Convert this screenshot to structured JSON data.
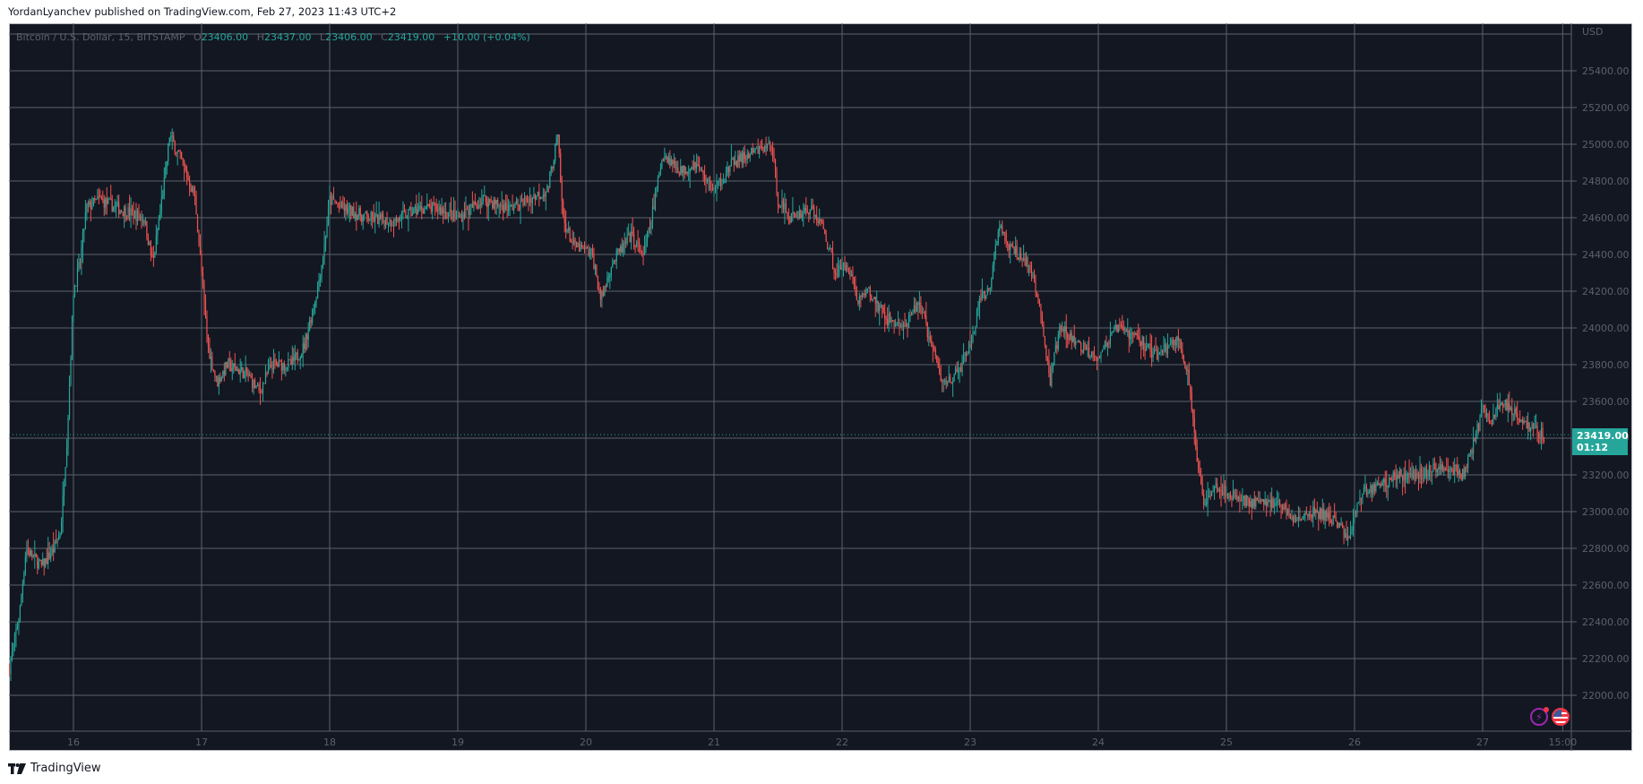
{
  "header": {
    "published_line": "YordanLyanchev published on TradingView.com, Feb 27, 2023 11:43 UTC+2"
  },
  "legend": {
    "symbol": "Bitcoin / U.S. Dollar, 15, BITSTAMP",
    "open_label": "O",
    "open": "23406.00",
    "high_label": "H",
    "high": "23437.00",
    "low_label": "L",
    "low": "23406.00",
    "close_label": "C",
    "close": "23419.00",
    "change": "+10.00 (+0.04%)"
  },
  "price_tag": {
    "price": "23419.00",
    "countdown": "01:12"
  },
  "footer": {
    "brand": "TradingView"
  },
  "icons": [
    "lightning-alert-icon",
    "us-flag-events-icon"
  ],
  "colors": {
    "background": "#131722",
    "grid": "#5d606b",
    "up": "#26a69a",
    "down": "#ef5350",
    "axis_text": "#5d606b",
    "last_price": "#26a69a"
  },
  "chart_data": {
    "type": "candlestick",
    "title": "Bitcoin / U.S. Dollar, 15, BITSTAMP",
    "currency": "USD",
    "timeframe": "15",
    "exchange": "BITSTAMP",
    "y_ticks": [
      22000,
      22200,
      22400,
      22600,
      22800,
      23000,
      23200,
      23400,
      23600,
      23800,
      24000,
      24200,
      24400,
      24600,
      24800,
      25000,
      25200,
      25400
    ],
    "y_tick_labels": [
      "22000.00",
      "22200.00",
      "22400.00",
      "22600.00",
      "22800.00",
      "23000.00",
      "23200.00",
      "23400.00",
      "23600.00",
      "23800.00",
      "24000.00",
      "24200.00",
      "24400.00",
      "24600.00",
      "24800.00",
      "25000.00",
      "25200.00",
      "25400.00"
    ],
    "x_tick_labels": [
      "16",
      "17",
      "18",
      "19",
      "20",
      "21",
      "22",
      "23",
      "24",
      "25",
      "26",
      "27",
      "15:00"
    ],
    "x_tick_days": [
      16,
      17,
      18,
      19,
      20,
      21,
      22,
      23,
      24,
      25,
      26,
      27,
      27.625
    ],
    "ylim": [
      21850,
      25600
    ],
    "xlim": [
      15.48,
      27.72
    ],
    "last_price": 23419.0,
    "grid": true,
    "approx_close_path": [
      [
        15.5,
        22150
      ],
      [
        15.58,
        22450
      ],
      [
        15.63,
        22800
      ],
      [
        15.75,
        22700
      ],
      [
        15.85,
        22800
      ],
      [
        15.9,
        22900
      ],
      [
        15.95,
        23400
      ],
      [
        16.0,
        24200
      ],
      [
        16.05,
        24350
      ],
      [
        16.1,
        24650
      ],
      [
        16.2,
        24700
      ],
      [
        16.35,
        24650
      ],
      [
        16.55,
        24600
      ],
      [
        16.62,
        24350
      ],
      [
        16.72,
        24850
      ],
      [
        16.75,
        25050
      ],
      [
        16.85,
        24900
      ],
      [
        16.95,
        24700
      ],
      [
        17.0,
        24300
      ],
      [
        17.05,
        23900
      ],
      [
        17.12,
        23700
      ],
      [
        17.2,
        23800
      ],
      [
        17.35,
        23750
      ],
      [
        17.45,
        23650
      ],
      [
        17.55,
        23800
      ],
      [
        17.7,
        23800
      ],
      [
        17.8,
        23900
      ],
      [
        17.9,
        24200
      ],
      [
        17.95,
        24400
      ],
      [
        18.0,
        24700
      ],
      [
        18.1,
        24650
      ],
      [
        18.3,
        24600
      ],
      [
        18.5,
        24580
      ],
      [
        18.7,
        24650
      ],
      [
        18.85,
        24650
      ],
      [
        19.0,
        24600
      ],
      [
        19.2,
        24700
      ],
      [
        19.4,
        24650
      ],
      [
        19.55,
        24700
      ],
      [
        19.7,
        24750
      ],
      [
        19.78,
        25050
      ],
      [
        19.82,
        24600
      ],
      [
        19.9,
        24450
      ],
      [
        20.05,
        24400
      ],
      [
        20.12,
        24150
      ],
      [
        20.2,
        24350
      ],
      [
        20.35,
        24500
      ],
      [
        20.45,
        24400
      ],
      [
        20.5,
        24550
      ],
      [
        20.6,
        24950
      ],
      [
        20.75,
        24850
      ],
      [
        20.85,
        24900
      ],
      [
        21.0,
        24750
      ],
      [
        21.15,
        24900
      ],
      [
        21.3,
        24950
      ],
      [
        21.45,
        25000
      ],
      [
        21.5,
        24700
      ],
      [
        21.6,
        24600
      ],
      [
        21.75,
        24650
      ],
      [
        21.85,
        24550
      ],
      [
        21.95,
        24300
      ],
      [
        22.05,
        24350
      ],
      [
        22.12,
        24150
      ],
      [
        22.2,
        24200
      ],
      [
        22.35,
        24050
      ],
      [
        22.5,
        24000
      ],
      [
        22.6,
        24150
      ],
      [
        22.7,
        23900
      ],
      [
        22.78,
        23700
      ],
      [
        22.9,
        23750
      ],
      [
        23.0,
        23900
      ],
      [
        23.08,
        24150
      ],
      [
        23.15,
        24200
      ],
      [
        23.22,
        24550
      ],
      [
        23.3,
        24450
      ],
      [
        23.45,
        24350
      ],
      [
        23.55,
        24100
      ],
      [
        23.62,
        23700
      ],
      [
        23.7,
        24000
      ],
      [
        23.85,
        23900
      ],
      [
        24.0,
        23850
      ],
      [
        24.15,
        24000
      ],
      [
        24.3,
        23950
      ],
      [
        24.45,
        23850
      ],
      [
        24.55,
        23900
      ],
      [
        24.62,
        23950
      ],
      [
        24.7,
        23750
      ],
      [
        24.75,
        23400
      ],
      [
        24.82,
        23050
      ],
      [
        24.9,
        23150
      ],
      [
        25.0,
        23100
      ],
      [
        25.2,
        23050
      ],
      [
        25.4,
        23050
      ],
      [
        25.55,
        22950
      ],
      [
        25.7,
        23000
      ],
      [
        25.85,
        22950
      ],
      [
        25.95,
        22850
      ],
      [
        26.05,
        23100
      ],
      [
        26.2,
        23150
      ],
      [
        26.35,
        23200
      ],
      [
        26.5,
        23200
      ],
      [
        26.7,
        23250
      ],
      [
        26.85,
        23200
      ],
      [
        26.92,
        23350
      ],
      [
        27.0,
        23550
      ],
      [
        27.08,
        23500
      ],
      [
        27.15,
        23600
      ],
      [
        27.25,
        23550
      ],
      [
        27.38,
        23450
      ],
      [
        27.48,
        23419
      ]
    ]
  }
}
